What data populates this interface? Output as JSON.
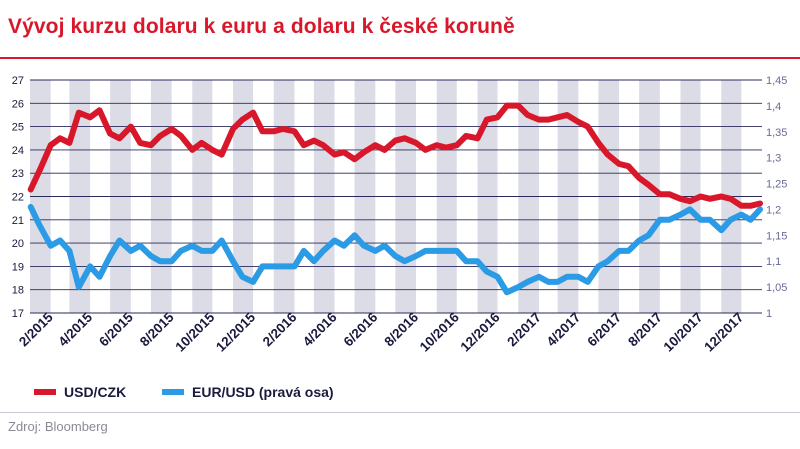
{
  "title": "Vývoj kurzu dolaru k euru a dolaru k české koruně",
  "source": "Zdroj: Bloomberg",
  "colors": {
    "title": "#d8182a",
    "usd_czk": "#d8182a",
    "eur_usd": "#2b9be6",
    "band": "#dcdce6",
    "axis_text": "#1a1a3e",
    "right_axis_text": "#6a6a96"
  },
  "chart_data": {
    "type": "line",
    "title": "Vývoj kurzu dolaru k euru a dolaru k české koruně",
    "x_range": [
      "2015-01-01",
      "2018-01-01"
    ],
    "x_ticks": [
      "2/2015",
      "4/2015",
      "6/2015",
      "8/2015",
      "10/2015",
      "12/2015",
      "2/2016",
      "4/2016",
      "6/2016",
      "8/2016",
      "10/2016",
      "12/2016",
      "2/2017",
      "4/2017",
      "6/2017",
      "8/2017",
      "10/2017",
      "12/2017"
    ],
    "y_left": {
      "min": 17,
      "max": 27,
      "ticks": [
        "27",
        "26",
        "25",
        "24",
        "23",
        "22",
        "21",
        "20",
        "19",
        "18",
        "17"
      ]
    },
    "y_right": {
      "min": 1,
      "max": 1.45,
      "ticks": [
        "1,45",
        "1,4",
        "1,35",
        "1,3",
        "1,25",
        "1,2",
        "1,15",
        "1,1",
        "1,05",
        "1"
      ]
    },
    "grid": "horizontal lines, alternating month shading",
    "legend_position": "bottom-left",
    "series": [
      {
        "name": "USD/CZK",
        "axis": "left",
        "points": [
          [
            "2015-01-02",
            22.3
          ],
          [
            "2015-01-15",
            23.1
          ],
          [
            "2015-02-01",
            24.2
          ],
          [
            "2015-02-15",
            24.5
          ],
          [
            "2015-03-01",
            24.3
          ],
          [
            "2015-03-15",
            25.6
          ],
          [
            "2015-04-01",
            25.4
          ],
          [
            "2015-04-15",
            25.7
          ],
          [
            "2015-05-01",
            24.7
          ],
          [
            "2015-05-15",
            24.5
          ],
          [
            "2015-06-01",
            25.0
          ],
          [
            "2015-06-15",
            24.3
          ],
          [
            "2015-07-01",
            24.2
          ],
          [
            "2015-07-15",
            24.6
          ],
          [
            "2015-08-01",
            24.9
          ],
          [
            "2015-08-15",
            24.6
          ],
          [
            "2015-09-01",
            24.0
          ],
          [
            "2015-09-15",
            24.3
          ],
          [
            "2015-10-01",
            24.0
          ],
          [
            "2015-10-15",
            23.8
          ],
          [
            "2015-11-01",
            24.9
          ],
          [
            "2015-11-15",
            25.3
          ],
          [
            "2015-12-01",
            25.6
          ],
          [
            "2015-12-15",
            24.8
          ],
          [
            "2016-01-01",
            24.8
          ],
          [
            "2016-01-15",
            24.9
          ],
          [
            "2016-02-01",
            24.8
          ],
          [
            "2016-02-15",
            24.2
          ],
          [
            "2016-03-01",
            24.4
          ],
          [
            "2016-03-15",
            24.2
          ],
          [
            "2016-04-01",
            23.8
          ],
          [
            "2016-04-15",
            23.9
          ],
          [
            "2016-05-01",
            23.6
          ],
          [
            "2016-05-15",
            23.9
          ],
          [
            "2016-06-01",
            24.2
          ],
          [
            "2016-06-15",
            24.0
          ],
          [
            "2016-07-01",
            24.4
          ],
          [
            "2016-07-15",
            24.5
          ],
          [
            "2016-08-01",
            24.3
          ],
          [
            "2016-08-15",
            24.0
          ],
          [
            "2016-09-01",
            24.2
          ],
          [
            "2016-09-15",
            24.1
          ],
          [
            "2016-10-01",
            24.2
          ],
          [
            "2016-10-15",
            24.6
          ],
          [
            "2016-11-01",
            24.5
          ],
          [
            "2016-11-15",
            25.3
          ],
          [
            "2016-12-01",
            25.4
          ],
          [
            "2016-12-15",
            25.9
          ],
          [
            "2017-01-01",
            25.9
          ],
          [
            "2017-01-15",
            25.5
          ],
          [
            "2017-02-01",
            25.3
          ],
          [
            "2017-02-15",
            25.3
          ],
          [
            "2017-03-01",
            25.4
          ],
          [
            "2017-03-15",
            25.5
          ],
          [
            "2017-04-01",
            25.2
          ],
          [
            "2017-04-15",
            25.0
          ],
          [
            "2017-05-01",
            24.3
          ],
          [
            "2017-05-15",
            23.8
          ],
          [
            "2017-06-01",
            23.4
          ],
          [
            "2017-06-15",
            23.3
          ],
          [
            "2017-07-01",
            22.8
          ],
          [
            "2017-07-15",
            22.5
          ],
          [
            "2017-08-01",
            22.1
          ],
          [
            "2017-08-15",
            22.1
          ],
          [
            "2017-09-01",
            21.9
          ],
          [
            "2017-09-15",
            21.8
          ],
          [
            "2017-10-01",
            22.0
          ],
          [
            "2017-10-15",
            21.9
          ],
          [
            "2017-11-01",
            22.0
          ],
          [
            "2017-11-15",
            21.9
          ],
          [
            "2017-12-01",
            21.6
          ],
          [
            "2017-12-15",
            21.6
          ],
          [
            "2017-12-29",
            21.7
          ]
        ]
      },
      {
        "name": "EUR/USD (pravá osa)",
        "axis": "right",
        "points": [
          [
            "2015-01-02",
            1.205
          ],
          [
            "2015-01-15",
            1.17
          ],
          [
            "2015-02-01",
            1.13
          ],
          [
            "2015-02-15",
            1.14
          ],
          [
            "2015-03-01",
            1.12
          ],
          [
            "2015-03-15",
            1.05
          ],
          [
            "2015-04-01",
            1.09
          ],
          [
            "2015-04-15",
            1.07
          ],
          [
            "2015-05-01",
            1.11
          ],
          [
            "2015-05-15",
            1.14
          ],
          [
            "2015-06-01",
            1.12
          ],
          [
            "2015-06-15",
            1.13
          ],
          [
            "2015-07-01",
            1.11
          ],
          [
            "2015-07-15",
            1.1
          ],
          [
            "2015-08-01",
            1.1
          ],
          [
            "2015-08-15",
            1.12
          ],
          [
            "2015-09-01",
            1.13
          ],
          [
            "2015-09-15",
            1.12
          ],
          [
            "2015-10-01",
            1.12
          ],
          [
            "2015-10-15",
            1.14
          ],
          [
            "2015-11-01",
            1.1
          ],
          [
            "2015-11-15",
            1.07
          ],
          [
            "2015-12-01",
            1.06
          ],
          [
            "2015-12-15",
            1.09
          ],
          [
            "2016-01-01",
            1.09
          ],
          [
            "2016-01-15",
            1.09
          ],
          [
            "2016-02-01",
            1.09
          ],
          [
            "2016-02-15",
            1.12
          ],
          [
            "2016-03-01",
            1.1
          ],
          [
            "2016-03-15",
            1.12
          ],
          [
            "2016-04-01",
            1.14
          ],
          [
            "2016-04-15",
            1.13
          ],
          [
            "2016-05-01",
            1.15
          ],
          [
            "2016-05-15",
            1.13
          ],
          [
            "2016-06-01",
            1.12
          ],
          [
            "2016-06-15",
            1.13
          ],
          [
            "2016-07-01",
            1.11
          ],
          [
            "2016-07-15",
            1.1
          ],
          [
            "2016-08-01",
            1.11
          ],
          [
            "2016-08-15",
            1.12
          ],
          [
            "2016-09-01",
            1.12
          ],
          [
            "2016-09-15",
            1.12
          ],
          [
            "2016-10-01",
            1.12
          ],
          [
            "2016-10-15",
            1.1
          ],
          [
            "2016-11-01",
            1.1
          ],
          [
            "2016-11-15",
            1.08
          ],
          [
            "2016-12-01",
            1.07
          ],
          [
            "2016-12-15",
            1.04
          ],
          [
            "2017-01-01",
            1.05
          ],
          [
            "2017-01-15",
            1.06
          ],
          [
            "2017-02-01",
            1.07
          ],
          [
            "2017-02-15",
            1.06
          ],
          [
            "2017-03-01",
            1.06
          ],
          [
            "2017-03-15",
            1.07
          ],
          [
            "2017-04-01",
            1.07
          ],
          [
            "2017-04-15",
            1.06
          ],
          [
            "2017-05-01",
            1.09
          ],
          [
            "2017-05-15",
            1.1
          ],
          [
            "2017-06-01",
            1.12
          ],
          [
            "2017-06-15",
            1.12
          ],
          [
            "2017-07-01",
            1.14
          ],
          [
            "2017-07-15",
            1.15
          ],
          [
            "2017-08-01",
            1.18
          ],
          [
            "2017-08-15",
            1.18
          ],
          [
            "2017-09-01",
            1.19
          ],
          [
            "2017-09-15",
            1.2
          ],
          [
            "2017-10-01",
            1.18
          ],
          [
            "2017-10-15",
            1.18
          ],
          [
            "2017-11-01",
            1.16
          ],
          [
            "2017-11-15",
            1.18
          ],
          [
            "2017-12-01",
            1.19
          ],
          [
            "2017-12-15",
            1.18
          ],
          [
            "2017-12-29",
            1.2
          ]
        ]
      }
    ]
  }
}
